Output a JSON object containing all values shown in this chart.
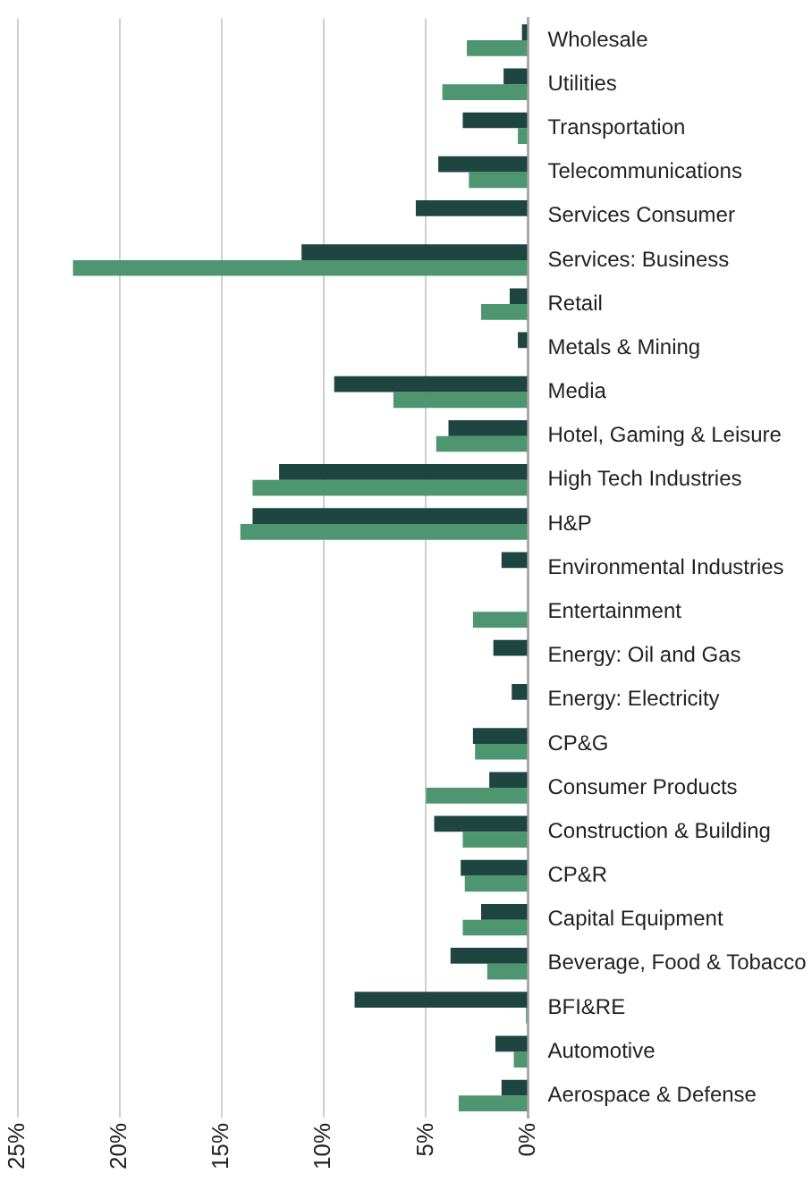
{
  "chart_data": {
    "type": "bar",
    "orientation": "horizontal",
    "categories": [
      "Wholesale",
      "Utilities",
      "Transportation",
      "Telecommunications",
      "Services Consumer",
      "Services: Business",
      "Retail",
      "Metals & Mining",
      "Media",
      "Hotel, Gaming & Leisure",
      "High Tech Industries",
      "H&P",
      "Environmental Industries",
      "Entertainment",
      "Energy: Oil and Gas",
      "Energy: Electricity",
      "CP&G",
      "Consumer Products",
      "Construction & Building",
      "CP&R",
      "Capital Equipment",
      "Beverage, Food & Tobacco",
      "BFI&RE",
      "Automotive",
      "Aerospace & Defense"
    ],
    "series": [
      {
        "color": "#1f4540",
        "values": [
          0.3,
          1.2,
          3.2,
          4.4,
          5.5,
          11.1,
          0.9,
          0.5,
          9.5,
          3.9,
          12.2,
          13.5,
          1.3,
          null,
          1.7,
          0.8,
          2.7,
          1.9,
          4.6,
          3.3,
          2.3,
          3.8,
          8.5,
          1.6,
          1.3
        ]
      },
      {
        "color": "#4e9670",
        "values": [
          3.0,
          4.2,
          0.5,
          2.9,
          null,
          22.3,
          2.3,
          null,
          6.6,
          4.5,
          13.5,
          14.1,
          null,
          2.7,
          null,
          null,
          2.6,
          5.0,
          3.2,
          3.1,
          3.2,
          2.0,
          0.1,
          0.7,
          3.4
        ]
      }
    ],
    "xlim": [
      25,
      0
    ],
    "xticks": [
      {
        "value": 25,
        "label": "25%"
      },
      {
        "value": 20,
        "label": "20%"
      },
      {
        "value": 15,
        "label": "15%"
      },
      {
        "value": 10,
        "label": "10%"
      },
      {
        "value": 5,
        "label": "5%"
      },
      {
        "value": 0,
        "label": "0%"
      }
    ],
    "grid": "x"
  }
}
